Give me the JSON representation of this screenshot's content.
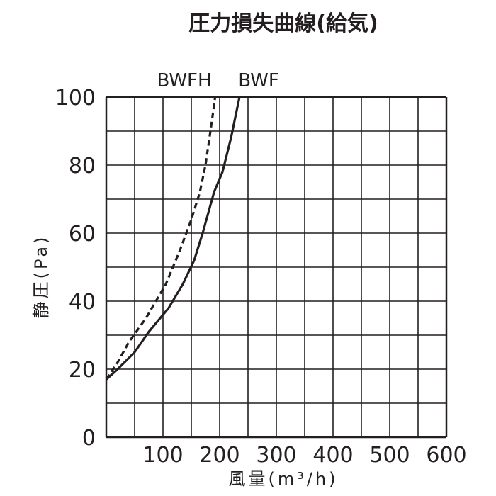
{
  "chart_data": {
    "type": "line",
    "title": "圧力損失曲線(給気)",
    "xlabel": "風量(m³/h)",
    "ylabel": "静圧(Pa)",
    "xlim": [
      0,
      600
    ],
    "ylim": [
      0,
      100
    ],
    "x_ticks": [
      "100",
      "200",
      "300",
      "400",
      "500",
      "600"
    ],
    "y_ticks": [
      "0",
      "20",
      "40",
      "60",
      "80",
      "100"
    ],
    "grid": true,
    "series": [
      {
        "name": "BWF",
        "style": "solid",
        "color": "#231f20",
        "points": [
          [
            0,
            17
          ],
          [
            20,
            20
          ],
          [
            50,
            25
          ],
          [
            75,
            31
          ],
          [
            110,
            38
          ],
          [
            135,
            45
          ],
          [
            155,
            52
          ],
          [
            170,
            60
          ],
          [
            190,
            72
          ],
          [
            205,
            78
          ],
          [
            220,
            88
          ],
          [
            235,
            100
          ]
        ]
      },
      {
        "name": "BWFH",
        "style": "dashed",
        "color": "#231f20",
        "points": [
          [
            0,
            17
          ],
          [
            20,
            22
          ],
          [
            40,
            28
          ],
          [
            70,
            35
          ],
          [
            105,
            45
          ],
          [
            130,
            55
          ],
          [
            150,
            64
          ],
          [
            165,
            72
          ],
          [
            175,
            80
          ],
          [
            182,
            88
          ],
          [
            188,
            95
          ],
          [
            192,
            100
          ]
        ]
      }
    ]
  }
}
